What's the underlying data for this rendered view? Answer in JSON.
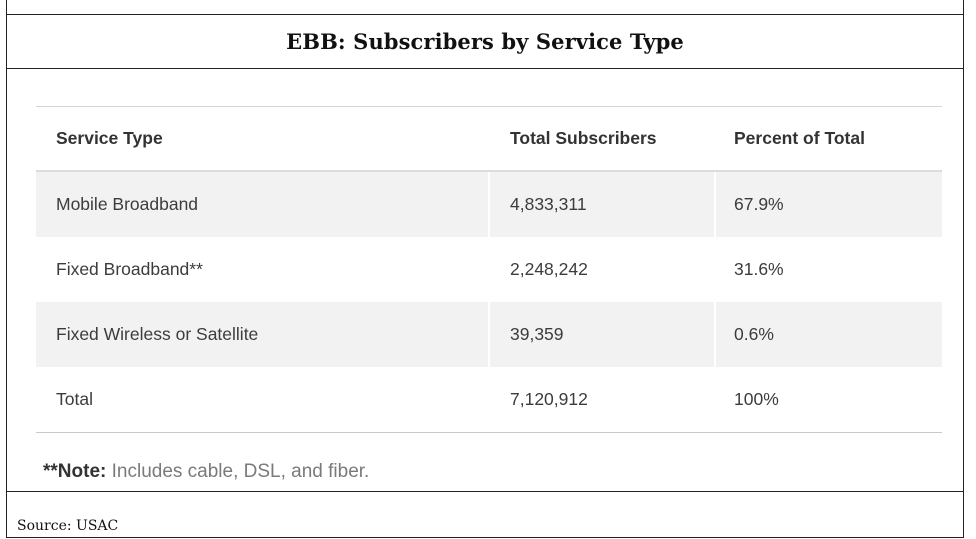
{
  "title": "EBB: Subscribers by Service Type",
  "table": {
    "headers": [
      "Service Type",
      "Total Subscribers",
      "Percent of Total"
    ],
    "rows": [
      [
        "Mobile Broadband",
        "4,833,311",
        "67.9%"
      ],
      [
        "Fixed Broadband**",
        "2,248,242",
        "31.6%"
      ],
      [
        "Fixed Wireless or Satellite",
        "39,359",
        "0.6%"
      ],
      [
        "Total",
        "7,120,912",
        "100%"
      ]
    ]
  },
  "note": {
    "label": "**Note:",
    "text": " Includes cable, DSL, and fiber."
  },
  "source": "Source: USAC",
  "colors": {
    "shaded_row": "#f2f2f2",
    "border": "#222222",
    "text": "#3c3c3c"
  }
}
